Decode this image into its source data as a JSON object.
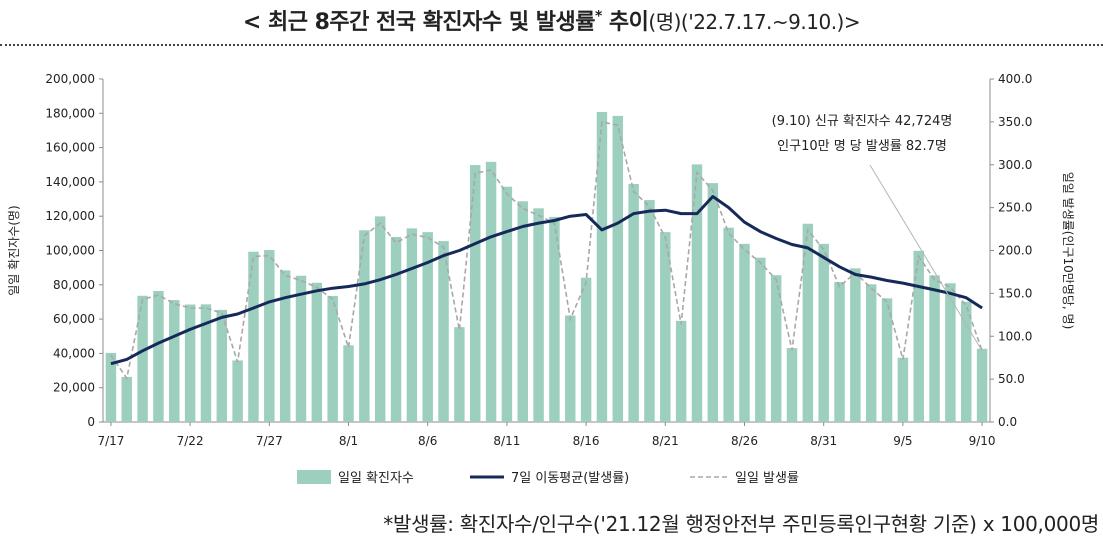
{
  "header": {
    "title_main": "< 최근 8주간 전국 확진자수 및 발생률",
    "title_star": "*",
    "title_mid": " 추이",
    "title_sub": "(명)('22.7.17.~9.10.)>"
  },
  "footnote": "*발생률: 확진자수/인구수('21.12월 행정안전부 주민등록인구현황 기준) x 100,000명",
  "chart_data": {
    "type": "bar+line",
    "title": "최근 8주간 전국 확진자수 및 발생률 추이",
    "left_axis": {
      "label": "일일 확진자수(명)",
      "ylim": [
        0,
        200000
      ],
      "ticks": [
        0,
        20000,
        40000,
        60000,
        80000,
        100000,
        120000,
        140000,
        160000,
        180000,
        200000
      ],
      "tick_labels": [
        "0",
        "20,000",
        "40,000",
        "60,000",
        "80,000",
        "100,000",
        "120,000",
        "140,000",
        "160,000",
        "180,000",
        "200,000"
      ]
    },
    "right_axis": {
      "label": "일일 발생률(인구10만명당, 명)",
      "ylim": [
        0,
        400
      ],
      "ticks": [
        0,
        50,
        100,
        150,
        200,
        250,
        300,
        350,
        400
      ],
      "tick_labels": [
        "0.0",
        "50.0",
        "100.0",
        "150.0",
        "200.0",
        "250.0",
        "300.0",
        "350.0",
        "400.0"
      ]
    },
    "x_labels": [
      {
        "index": 0,
        "label": "7/17"
      },
      {
        "index": 5,
        "label": "7/22"
      },
      {
        "index": 10,
        "label": "7/27"
      },
      {
        "index": 15,
        "label": "8/1"
      },
      {
        "index": 20,
        "label": "8/6"
      },
      {
        "index": 25,
        "label": "8/11"
      },
      {
        "index": 30,
        "label": "8/16"
      },
      {
        "index": 35,
        "label": "8/21"
      },
      {
        "index": 40,
        "label": "8/26"
      },
      {
        "index": 45,
        "label": "8/31"
      },
      {
        "index": 50,
        "label": "9/5"
      },
      {
        "index": 55,
        "label": "9/10"
      }
    ],
    "series": [
      {
        "name": "일일 확진자수",
        "type": "bar",
        "axis": "left",
        "color": "#9ccfbd",
        "values": [
          40300,
          26300,
          73600,
          76400,
          71100,
          68500,
          68600,
          65400,
          35900,
          99300,
          100300,
          88400,
          85300,
          81200,
          73500,
          44700,
          111800,
          119900,
          107900,
          112900,
          110700,
          105500,
          55300,
          149800,
          151700,
          137200,
          128700,
          124600,
          119600,
          62100,
          84100,
          180800,
          178500,
          138800,
          129400,
          110700,
          59000,
          150200,
          139300,
          113300,
          103900,
          95800,
          85600,
          43100,
          115600,
          103900,
          81600,
          89600,
          80300,
          72100,
          37500,
          99800,
          85500,
          80900,
          70100,
          42700
        ]
      },
      {
        "name": "7일 이동평균(발생률)",
        "type": "line",
        "axis": "right",
        "color": "#162a5a",
        "values": [
          68,
          73,
          83,
          92,
          100,
          108,
          115,
          122,
          126,
          133,
          140,
          145,
          149,
          153,
          156,
          158,
          161,
          166,
          172,
          179,
          186,
          194,
          200,
          208,
          216,
          222,
          228,
          232,
          235,
          240,
          242,
          224,
          232,
          243,
          246,
          247,
          243,
          243,
          263,
          250,
          233,
          222,
          214,
          207,
          203,
          192,
          181,
          172,
          169,
          165,
          162,
          158,
          154,
          150,
          145,
          133
        ]
      },
      {
        "name": "일일 발생률",
        "type": "line-dashed",
        "axis": "right",
        "color": "#a8a8a8",
        "values": [
          78,
          51,
          143,
          148,
          138,
          133,
          133,
          127,
          70,
          193,
          194,
          171,
          165,
          157,
          143,
          87,
          217,
          232,
          209,
          219,
          215,
          204,
          107,
          290,
          294,
          266,
          249,
          241,
          232,
          120,
          163,
          350,
          346,
          269,
          251,
          215,
          114,
          291,
          270,
          220,
          201,
          186,
          166,
          84,
          224,
          201,
          158,
          174,
          156,
          140,
          73,
          193,
          166,
          157,
          136,
          83
        ]
      }
    ],
    "legend": [
      "일일 확진자수",
      "7일 이동평균(발생률)",
      "일일 발생률"
    ],
    "legend_position": "bottom",
    "annotation": {
      "line1": "(9.10) 신규 확진자수 42,724명",
      "line2": "인구10만 명 당 발생률 82.7명"
    },
    "grid": false
  }
}
